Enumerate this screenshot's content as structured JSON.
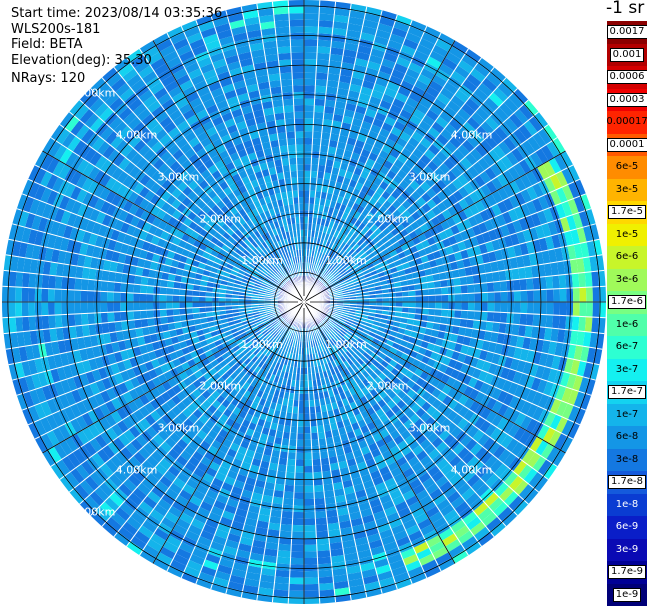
{
  "header": {
    "start_time": "Start time: 2023/08/14 03:35:36",
    "instrument": "WLS200s-181",
    "field": "Field: BETA",
    "elevation": "Elevation(deg): 35.30",
    "nrays": "NRays: 120"
  },
  "colorbar": {
    "unit": "-1 sr",
    "levels": [
      {
        "label": "0.0017",
        "color": "#8b0000",
        "text_color": "#ffffff",
        "boxed": true
      },
      {
        "label": "0.001",
        "color": "#b20000",
        "text_color": "#ffffff",
        "boxed": true
      },
      {
        "label": "0.0006",
        "color": "#d40000",
        "text_color": "#ffffff",
        "boxed": true
      },
      {
        "label": "0.0003",
        "color": "#f00000",
        "text_color": "#ffffff",
        "boxed": true
      },
      {
        "label": "0.00017",
        "color": "#ff2400",
        "text_color": "#000000",
        "boxed": false
      },
      {
        "label": "0.0001",
        "color": "#ff5a00",
        "text_color": "#000000",
        "boxed": true
      },
      {
        "label": "6e-5",
        "color": "#ff8c00",
        "text_color": "#000000",
        "boxed": false
      },
      {
        "label": "3e-5",
        "color": "#ffb400",
        "text_color": "#000000",
        "boxed": false
      },
      {
        "label": "1.7e-5",
        "color": "#ffd800",
        "text_color": "#000000",
        "boxed": true
      },
      {
        "label": "1e-5",
        "color": "#f0f000",
        "text_color": "#000000",
        "boxed": false
      },
      {
        "label": "6e-6",
        "color": "#c8f52a",
        "text_color": "#000000",
        "boxed": false
      },
      {
        "label": "3e-6",
        "color": "#a0fa5a",
        "text_color": "#000000",
        "boxed": false
      },
      {
        "label": "1.7e-6",
        "color": "#78ff82",
        "text_color": "#000000",
        "boxed": true
      },
      {
        "label": "1e-6",
        "color": "#50ffaa",
        "text_color": "#000000",
        "boxed": false
      },
      {
        "label": "6e-7",
        "color": "#2dffd2",
        "text_color": "#000000",
        "boxed": false
      },
      {
        "label": "3e-7",
        "color": "#14f0f0",
        "text_color": "#000000",
        "boxed": false
      },
      {
        "label": "1.7e-7",
        "color": "#14d2f0",
        "text_color": "#000000",
        "boxed": true
      },
      {
        "label": "1e-7",
        "color": "#14b4eb",
        "text_color": "#000000",
        "boxed": false
      },
      {
        "label": "6e-8",
        "color": "#1496e6",
        "text_color": "#000000",
        "boxed": false
      },
      {
        "label": "3e-8",
        "color": "#1478e1",
        "text_color": "#000000",
        "boxed": false
      },
      {
        "label": "1.7e-8",
        "color": "#145adc",
        "text_color": "#000000",
        "boxed": true
      },
      {
        "label": "1e-8",
        "color": "#0a3cd2",
        "text_color": "#ffffff",
        "boxed": false
      },
      {
        "label": "6e-9",
        "color": "#0a1ec8",
        "text_color": "#ffffff",
        "boxed": false
      },
      {
        "label": "3e-9",
        "color": "#0a0ab4",
        "text_color": "#ffffff",
        "boxed": false
      },
      {
        "label": "1.7e-9",
        "color": "#000096",
        "text_color": "#ffffff",
        "boxed": true
      },
      {
        "label": "1e-9",
        "color": "#000078",
        "text_color": "#ffffff",
        "boxed": true
      }
    ]
  },
  "chart_data": {
    "type": "heatmap",
    "projection": "polar PPI",
    "field": "BETA",
    "elevation_deg": 35.3,
    "n_rays": 120,
    "range_ring_labels": [
      "1.00km",
      "2.00km",
      "3.00km",
      "4.00km",
      "5.00km"
    ],
    "range_rings_km": [
      1,
      2,
      3,
      4,
      5
    ],
    "max_range_km": 5.1,
    "dominant_value_range": [
      3e-08,
      1e-07
    ],
    "near_range_value_range": [
      1e-09,
      1e-08
    ],
    "enhanced_band": {
      "azimuth_deg": [
        60,
        160
      ],
      "range_km": [
        4.55,
        4.9
      ],
      "value_range": [
        3e-07,
        6e-06
      ]
    }
  }
}
